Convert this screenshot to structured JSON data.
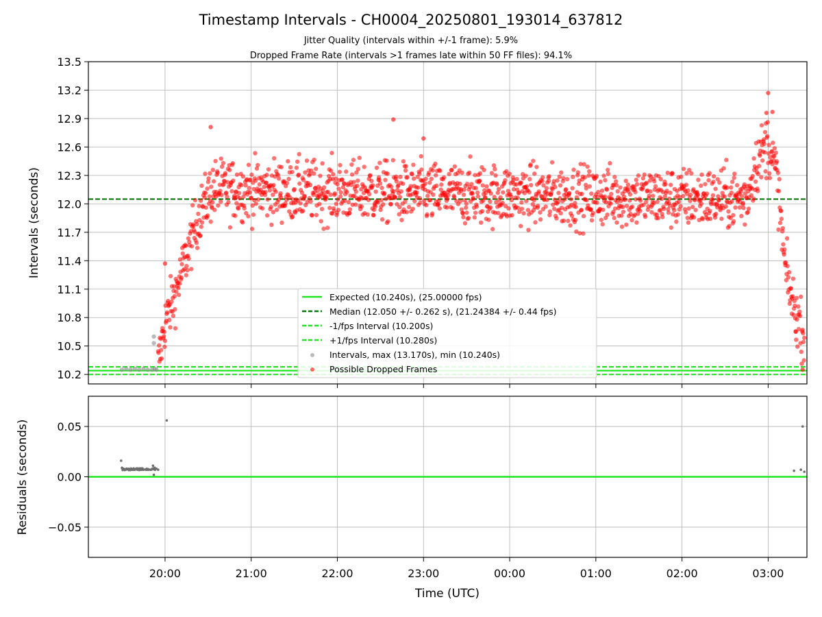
{
  "chart_data": {
    "type": "scatter",
    "title": "Timestamp Intervals - CH0004_20250801_193014_637812",
    "subtitle_lines": [
      "Jitter Quality (intervals within +/-1 frame): 5.9%",
      "Dropped Frame Rate (intervals >1 frames late within 50 FF files): 94.1%"
    ],
    "xlabel": "Time (UTC)",
    "x_tick_labels": [
      "20:00",
      "21:00",
      "22:00",
      "23:00",
      "00:00",
      "01:00",
      "02:00",
      "03:00"
    ],
    "x_tick_hours": [
      20,
      21,
      22,
      23,
      24,
      25,
      26,
      27
    ],
    "xlim_hours": [
      19.11,
      27.45
    ],
    "grid": true,
    "top_panel": {
      "ylabel": "Intervals (seconds)",
      "ylim": [
        10.1,
        13.5
      ],
      "y_ticks": [
        10.2,
        10.5,
        10.8,
        11.1,
        11.4,
        11.7,
        12.0,
        12.3,
        12.6,
        12.9,
        13.2,
        13.5
      ],
      "legend_placement": "lower-center",
      "lines": [
        {
          "name": "Expected (10.240s), (25.00000 fps)",
          "y": 10.24,
          "color": "#1ee61e",
          "style": "solid"
        },
        {
          "name": "Median (12.050 +/- 0.262 s), (21.24384 +/- 0.44 fps)",
          "y": 12.05,
          "color": "#007a00",
          "style": "dashed"
        },
        {
          "name": "-1/fps Interval (10.200s)",
          "y": 10.2,
          "color": "#1ee61e",
          "style": "dashed"
        },
        {
          "name": "+1/fps Interval (10.280s)",
          "y": 10.28,
          "color": "#1ee61e",
          "style": "dashed"
        }
      ],
      "series": [
        {
          "name": "Intervals, max (13.170s), min (10.240s)",
          "color": "#8c8c8c",
          "points": [
            [
              19.5,
              10.25
            ],
            [
              19.55,
              10.26
            ],
            [
              19.6,
              10.25
            ],
            [
              19.65,
              10.26
            ],
            [
              19.7,
              10.25
            ],
            [
              19.75,
              10.26
            ],
            [
              19.8,
              10.25
            ],
            [
              19.85,
              10.25
            ],
            [
              19.88,
              10.26
            ],
            [
              19.9,
              10.25
            ],
            [
              19.87,
              10.6
            ],
            [
              19.87,
              10.53
            ]
          ]
        },
        {
          "name": "Possible Dropped Frames",
          "color": "#ff0000",
          "profile": [
            [
              19.92,
              10.3
            ],
            [
              20.0,
              10.75
            ],
            [
              20.1,
              11.0
            ],
            [
              20.2,
              11.3
            ],
            [
              20.3,
              11.6
            ],
            [
              20.4,
              11.9
            ],
            [
              20.55,
              12.15
            ],
            [
              20.8,
              12.15
            ],
            [
              26.75,
              12.05
            ],
            [
              26.85,
              12.4
            ],
            [
              27.0,
              12.65
            ],
            [
              27.1,
              12.3
            ],
            [
              27.15,
              11.8
            ],
            [
              27.2,
              11.3
            ],
            [
              27.3,
              10.9
            ],
            [
              27.42,
              10.6
            ]
          ],
          "spread": 0.16,
          "count": 1500,
          "notable_points": [
            [
              20.53,
              12.81
            ],
            [
              22.65,
              12.89
            ],
            [
              23.0,
              12.69
            ],
            [
              27.0,
              13.17
            ],
            [
              26.98,
              12.96
            ],
            [
              27.05,
              12.97
            ],
            [
              20.0,
              11.37
            ],
            [
              27.32,
              10.65
            ],
            [
              27.4,
              10.25
            ]
          ]
        }
      ]
    },
    "bottom_panel": {
      "ylabel": "Residuals (seconds)",
      "ylim": [
        -0.08,
        0.08
      ],
      "y_ticks": [
        0.05,
        0.0,
        -0.05
      ],
      "y_tick_labels": [
        "0.05",
        "0.00",
        "−0.05"
      ],
      "zero_line_color": "#1ee61e",
      "series": [
        {
          "name": "Residuals",
          "color": "#6e6e6e",
          "points": [
            [
              19.49,
              0.016
            ],
            [
              19.5,
              0.009
            ],
            [
              19.52,
              0.008
            ],
            [
              19.55,
              0.008
            ],
            [
              19.58,
              0.008
            ],
            [
              19.6,
              0.007
            ],
            [
              19.63,
              0.007
            ],
            [
              19.65,
              0.007
            ],
            [
              19.68,
              0.007
            ],
            [
              19.7,
              0.007
            ],
            [
              19.73,
              0.007
            ],
            [
              19.75,
              0.007
            ],
            [
              19.78,
              0.007
            ],
            [
              19.8,
              0.007
            ],
            [
              19.83,
              0.007
            ],
            [
              19.86,
              0.011
            ],
            [
              19.87,
              0.002
            ],
            [
              19.88,
              0.009
            ],
            [
              19.9,
              0.008
            ],
            [
              19.92,
              0.007
            ],
            [
              20.02,
              0.056
            ],
            [
              27.3,
              0.006
            ],
            [
              27.38,
              0.007
            ],
            [
              27.4,
              0.05
            ],
            [
              27.42,
              0.005
            ]
          ]
        }
      ]
    }
  }
}
